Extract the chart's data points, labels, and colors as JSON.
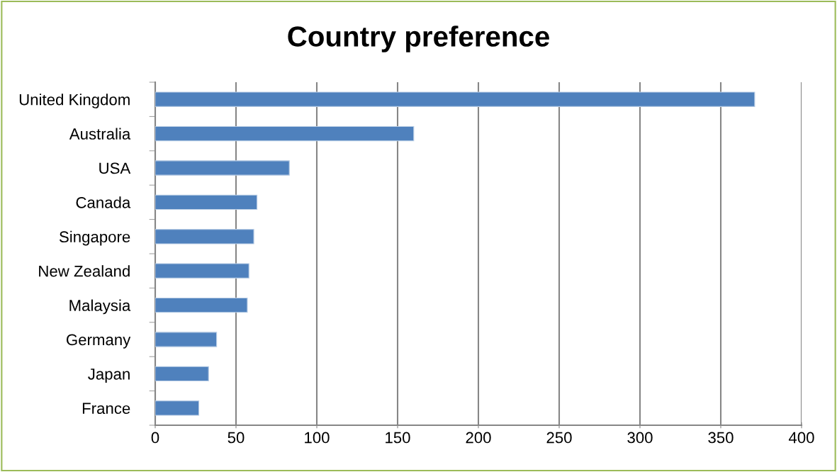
{
  "chart_data": {
    "type": "bar",
    "orientation": "horizontal",
    "title": "Country preference",
    "categories": [
      "United Kingdom",
      "Australia",
      "USA",
      "Canada",
      "Singapore",
      "New Zealand",
      "Malaysia",
      "Germany",
      "Japan",
      "France"
    ],
    "values": [
      371,
      160,
      83,
      63,
      61,
      58,
      57,
      38,
      33,
      27
    ],
    "color": "#4f81bd",
    "xlim": [
      0,
      400
    ],
    "xticks": [
      0,
      50,
      100,
      150,
      200,
      250,
      300,
      350,
      400
    ],
    "grid": "x"
  }
}
